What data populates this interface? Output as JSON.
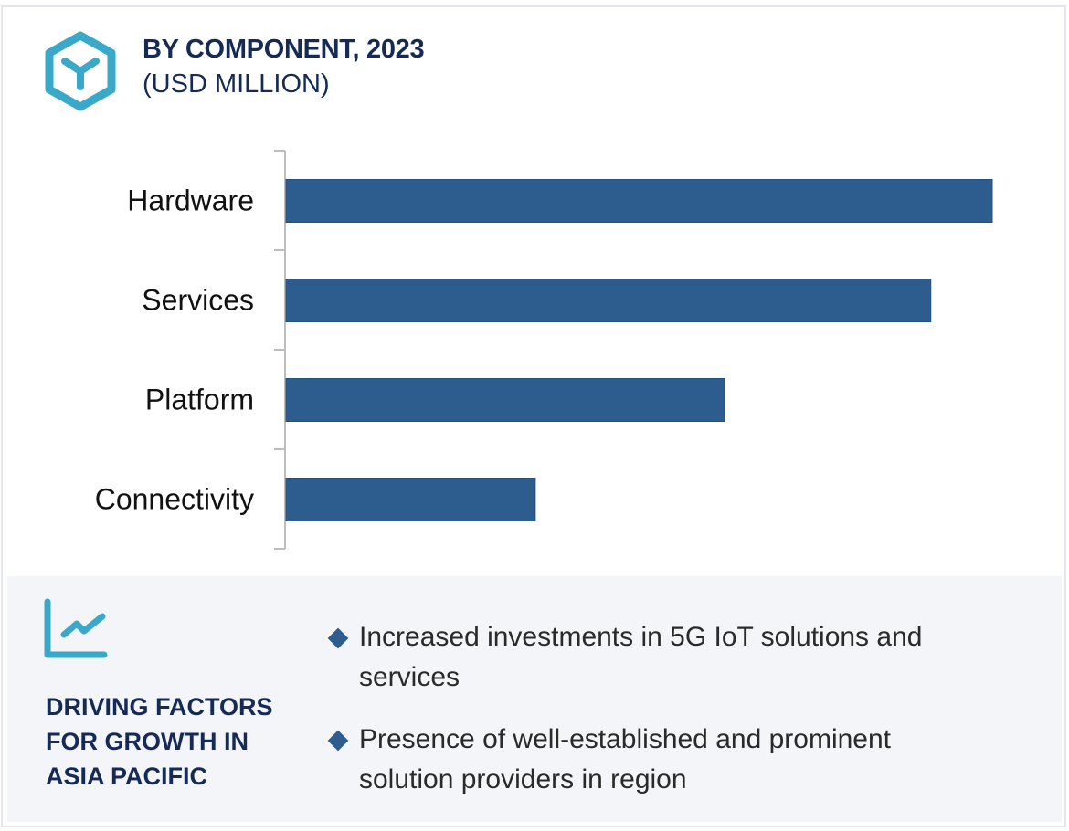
{
  "header": {
    "icon": "hexagon-cube-icon",
    "title": "BY COMPONENT, 2023",
    "subtitle": "(USD MILLION)"
  },
  "colors": {
    "bar": "#2c5d8e",
    "accent": "#3aa8c8",
    "heading": "#152a55",
    "panel_bg": "#f3f5f9"
  },
  "chart_data": {
    "type": "bar",
    "orientation": "horizontal",
    "title": "BY COMPONENT, 2023",
    "subtitle": "(USD MILLION)",
    "categories": [
      "Hardware",
      "Services",
      "Platform",
      "Connectivity"
    ],
    "values": [
      100,
      91.3,
      62.1,
      35.3
    ],
    "value_note": "No value axis shown; values are relative bar lengths (Hardware = 100)",
    "xlabel": "",
    "ylabel": "",
    "xlim": [
      0,
      100
    ],
    "grid": false,
    "legend": "none"
  },
  "drivers": {
    "icon": "line-chart-trend-icon",
    "title": "DRIVING FACTORS FOR GROWTH IN ASIA PACIFIC",
    "title_lines": [
      "DRIVING FACTORS",
      "FOR GROWTH IN",
      "ASIA PACIFIC"
    ],
    "items": [
      {
        "line1": "Increased investments in 5G IoT solutions and",
        "line2": "services"
      },
      {
        "line1": "Presence of well-established and prominent",
        "line2": "solution providers in region"
      }
    ]
  }
}
